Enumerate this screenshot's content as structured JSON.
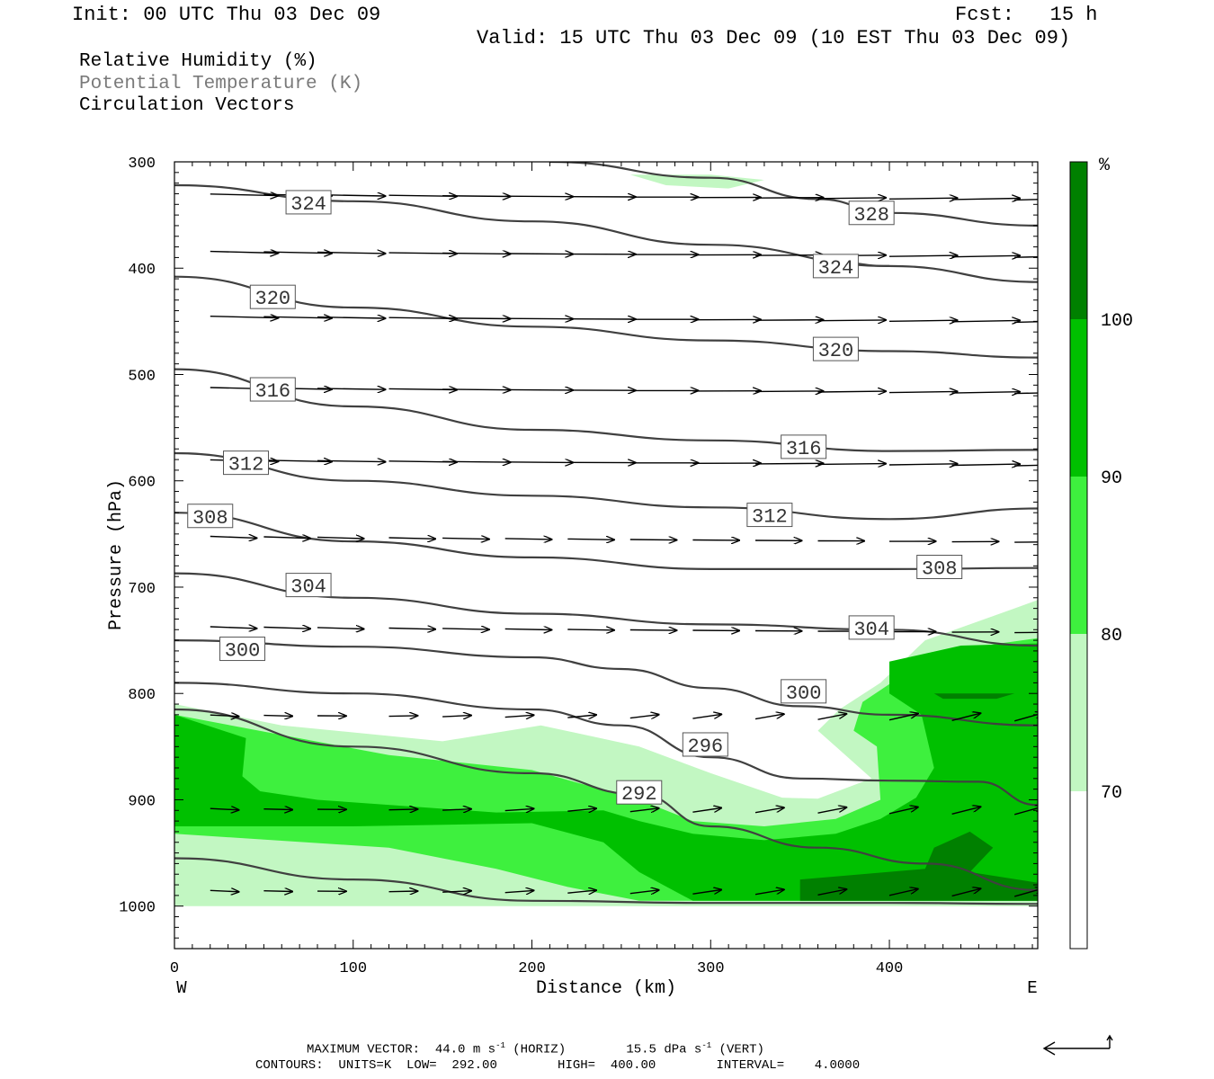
{
  "header": {
    "init": "Init: 00 UTC Thu 03 Dec 09",
    "fcst": "Fcst:   15 h",
    "valid": "Valid: 15 UTC Thu 03 Dec 09 (10 EST Thu 03 Dec 09)"
  },
  "legend": {
    "line1": "Relative Humidity (%)",
    "line2": "Potential Temperature (K)",
    "line3": "Circulation Vectors"
  },
  "footer": {
    "max_vector_label": "MAXIMUM VECTOR:",
    "max_vector_h": "44.0 m s",
    "max_vector_h_exp": "-1",
    "max_vector_h_unit": "(HORIZ)",
    "max_vector_v": "15.5 dPa s",
    "max_vector_v_exp": "-1",
    "max_vector_v_unit": "(VERT)",
    "contours": "CONTOURS:  UNITS=K  LOW=  292.00        HIGH=  400.00        INTERVAL=    4.0000"
  },
  "colors": {
    "rh70": "#c2f7c2",
    "rh80": "#3ef03e",
    "rh90": "#00c000",
    "rh100": "#008000",
    "theta": "#404040"
  },
  "chart_data": {
    "type": "cross-section",
    "xlabel": "Distance (km)",
    "ylabel": "Pressure (hPa)",
    "x_end_labels": [
      "W",
      "E"
    ],
    "xlim": [
      0,
      483
    ],
    "ylim": [
      1040,
      300
    ],
    "y_scale": "linear, pressure decreasing upward",
    "xticks": [
      0,
      100,
      200,
      300,
      400
    ],
    "yticks": [
      300,
      400,
      500,
      600,
      700,
      800,
      900,
      1000
    ],
    "colorbar": {
      "unit": "%",
      "levels": [
        70,
        80,
        90,
        100
      ]
    },
    "theta_contours": [
      {
        "label": "324",
        "x": [
          0,
          100,
          200,
          300,
          400,
          483
        ],
        "y": [
          322,
          337,
          356,
          378,
          398,
          413
        ],
        "label_at": [
          75,
          338
        ]
      },
      {
        "label": "324",
        "x": [
          360,
          400
        ],
        "y": [
          392,
          398
        ],
        "label_at": [
          370,
          398
        ]
      },
      {
        "label": "328",
        "x": [
          210,
          300,
          360,
          400,
          483
        ],
        "y": [
          300,
          315,
          335,
          348,
          360
        ],
        "label_at": [
          390,
          348
        ]
      },
      {
        "label": "320",
        "x": [
          0,
          100,
          200,
          300,
          400,
          483
        ],
        "y": [
          408,
          437,
          455,
          468,
          478,
          484
        ],
        "label_at": [
          55,
          427
        ]
      },
      {
        "label": "320",
        "x": [
          370
        ],
        "y": [
          478
        ],
        "label_at": [
          370,
          476
        ]
      },
      {
        "label": "316",
        "x": [
          0,
          100,
          200,
          300,
          400,
          483
        ],
        "y": [
          495,
          530,
          552,
          562,
          572,
          571
        ],
        "label_at": [
          55,
          514
        ]
      },
      {
        "label": "316",
        "x": [
          350
        ],
        "y": [
          566
        ],
        "label_at": [
          352,
          568
        ]
      },
      {
        "label": "312",
        "x": [
          0,
          100,
          200,
          300,
          400,
          483
        ],
        "y": [
          574,
          600,
          614,
          625,
          636,
          626
        ],
        "label_at": [
          40,
          583
        ]
      },
      {
        "label": "312",
        "x": [
          330
        ],
        "y": [
          632
        ],
        "label_at": [
          333,
          632
        ]
      },
      {
        "label": "308",
        "x": [
          0,
          100,
          200,
          300,
          400,
          483
        ],
        "y": [
          630,
          657,
          672,
          683,
          683,
          682
        ],
        "label_at": [
          20,
          633
        ]
      },
      {
        "label": "308",
        "x": [
          430
        ],
        "y": [
          681
        ],
        "label_at": [
          428,
          681
        ]
      },
      {
        "label": "304",
        "x": [
          0,
          100,
          200,
          300,
          400,
          483
        ],
        "y": [
          687,
          710,
          725,
          735,
          740,
          755
        ],
        "label_at": [
          75,
          698
        ]
      },
      {
        "label": "304",
        "x": [
          390
        ],
        "y": [
          740
        ],
        "label_at": [
          390,
          738
        ]
      },
      {
        "label": "300",
        "x": [
          0,
          100,
          200,
          250,
          300,
          350,
          400,
          483
        ],
        "y": [
          750,
          756,
          766,
          777,
          795,
          812,
          820,
          830
        ],
        "label_at": [
          38,
          758
        ]
      },
      {
        "label": "300",
        "x": [
          352
        ],
        "y": [
          800
        ],
        "label_at": [
          352,
          798
        ]
      },
      {
        "label": "296",
        "x": [
          0,
          100,
          200,
          250,
          300,
          350,
          400,
          450,
          483
        ],
        "y": [
          790,
          800,
          815,
          830,
          860,
          880,
          882,
          883,
          905
        ],
        "label_at": [
          297,
          848
        ]
      },
      {
        "label": "292",
        "x": [
          0,
          100,
          200,
          260,
          300,
          360,
          420,
          483
        ],
        "y": [
          815,
          850,
          875,
          895,
          925,
          945,
          960,
          985
        ],
        "label_at": [
          260,
          893
        ]
      },
      {
        "label": "",
        "x": [
          0,
          100,
          200,
          300,
          400,
          483
        ],
        "y": [
          955,
          975,
          995,
          997,
          997,
          998
        ],
        "label_at": null
      }
    ],
    "vectors": {
      "rows_hpa": [
        330,
        384,
        445,
        512,
        580,
        652,
        737,
        820,
        908,
        985
      ],
      "x_km": [
        20,
        50,
        80,
        120,
        150,
        185,
        220,
        255,
        290,
        325,
        360,
        400,
        435,
        470
      ],
      "u_scale": "relative",
      "upper_rows_arrow_length_km": 38,
      "lower_rows_arrow_length_km": 16
    },
    "max_vector": {
      "horiz": "44.0 m s-1",
      "vert": "15.5 dPa s-1"
    }
  }
}
